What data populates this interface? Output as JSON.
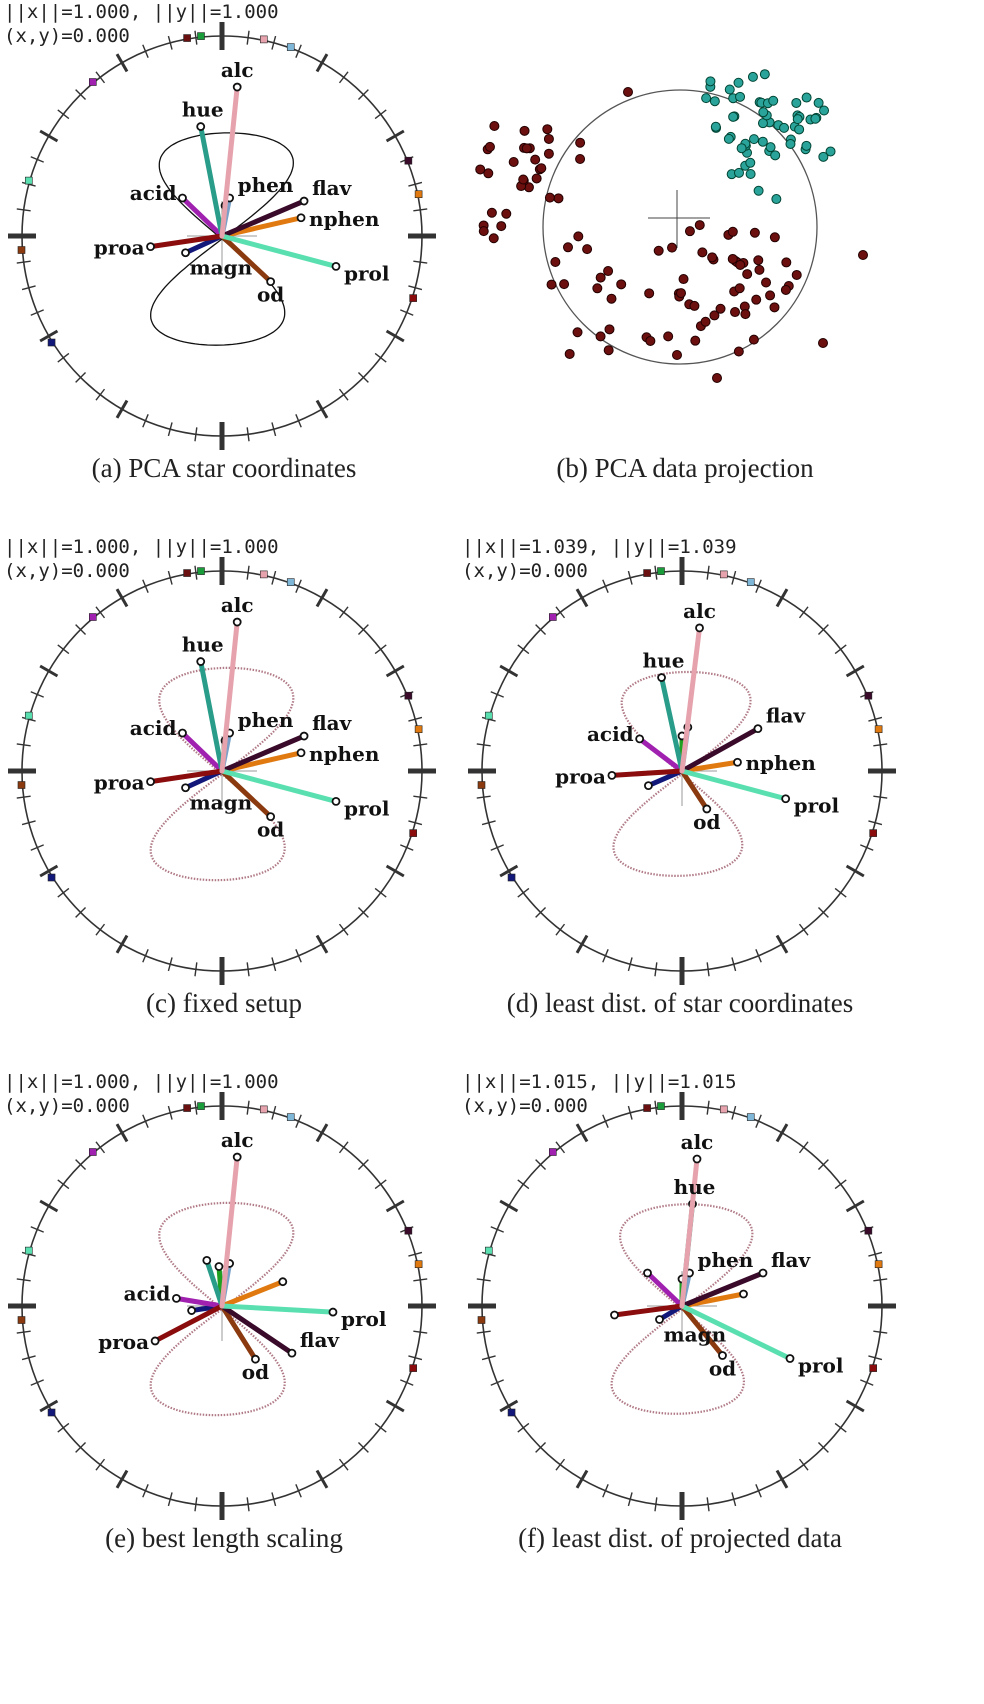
{
  "colors": {
    "alc": "#e6a3ad",
    "hue": "#2a9d8a",
    "acid": "#a020b0",
    "phen": "#7aa0c8",
    "flav": "#3a0a2a",
    "nphen": "#e07a10",
    "proa": "#8b0c0c",
    "magn": "#12177a",
    "od": "#8b3a10",
    "prol": "#5ae0b0",
    "ash": "#20a020",
    "ring": "#333333",
    "dot_class1": "#6b0f0f",
    "dot_class2": "#2aa49a"
  },
  "panels": [
    {
      "id": "a",
      "caption": "(a) PCA star coordinates",
      "type": "star",
      "readout": [
        "||x||=1.000, ||y||=1.000",
        "(x,y)=0.000"
      ],
      "axes": [
        {
          "name": "alc",
          "label": "alc",
          "dx": 0.1,
          "dy": 0.98
        },
        {
          "name": "hue",
          "label": "hue",
          "dx": -0.14,
          "dy": 0.72
        },
        {
          "name": "phen",
          "label": "phen",
          "dx": 0.05,
          "dy": 0.25
        },
        {
          "name": "flav",
          "label": "flav",
          "dx": 0.54,
          "dy": 0.23
        },
        {
          "name": "nphen",
          "label": "nphen",
          "dx": 0.52,
          "dy": 0.12
        },
        {
          "name": "acid",
          "label": "acid",
          "dx": -0.26,
          "dy": 0.25
        },
        {
          "name": "proa",
          "label": "proa",
          "dx": -0.47,
          "dy": -0.07
        },
        {
          "name": "magn",
          "label": "magn",
          "dx": -0.24,
          "dy": -0.11
        },
        {
          "name": "od",
          "label": "od",
          "dx": 0.32,
          "dy": -0.3
        },
        {
          "name": "prol",
          "label": "prol",
          "dx": 0.75,
          "dy": -0.2
        },
        {
          "name": "ash",
          "label": "",
          "dx": 0.02,
          "dy": 0.2
        }
      ]
    },
    {
      "id": "b",
      "caption": "(b) PCA data projection",
      "type": "scatter"
    },
    {
      "id": "c",
      "caption": "(c) fixed setup",
      "type": "star",
      "readout": [
        "||x||=1.000, ||y||=1.000",
        "(x,y)=0.000"
      ],
      "axes": [
        {
          "name": "alc",
          "label": "alc",
          "dx": 0.1,
          "dy": 0.98
        },
        {
          "name": "hue",
          "label": "hue",
          "dx": -0.14,
          "dy": 0.72
        },
        {
          "name": "phen",
          "label": "phen",
          "dx": 0.05,
          "dy": 0.25
        },
        {
          "name": "flav",
          "label": "flav",
          "dx": 0.54,
          "dy": 0.23
        },
        {
          "name": "nphen",
          "label": "nphen",
          "dx": 0.52,
          "dy": 0.12
        },
        {
          "name": "acid",
          "label": "acid",
          "dx": -0.26,
          "dy": 0.25
        },
        {
          "name": "proa",
          "label": "proa",
          "dx": -0.47,
          "dy": -0.07
        },
        {
          "name": "magn",
          "label": "magn",
          "dx": -0.24,
          "dy": -0.11
        },
        {
          "name": "od",
          "label": "od",
          "dx": 0.32,
          "dy": -0.3
        },
        {
          "name": "prol",
          "label": "prol",
          "dx": 0.75,
          "dy": -0.2
        },
        {
          "name": "ash",
          "label": "",
          "dx": 0.02,
          "dy": 0.2
        }
      ]
    },
    {
      "id": "d",
      "caption": "(d) least dist. of star coordinates",
      "type": "star",
      "readout": [
        "||x||=1.039, ||y||=1.039",
        "(x,y)=0.000"
      ],
      "axes": [
        {
          "name": "alc",
          "label": "alc",
          "dx": 0.12,
          "dy": 0.98
        },
        {
          "name": "hue",
          "label": "hue",
          "dx": -0.14,
          "dy": 0.64
        },
        {
          "name": "phen",
          "label": "",
          "dx": 0.04,
          "dy": 0.3
        },
        {
          "name": "flav",
          "label": "flav",
          "dx": 0.52,
          "dy": 0.29
        },
        {
          "name": "nphen",
          "label": "nphen",
          "dx": 0.38,
          "dy": 0.06
        },
        {
          "name": "acid",
          "label": "acid",
          "dx": -0.29,
          "dy": 0.22
        },
        {
          "name": "proa",
          "label": "proa",
          "dx": -0.48,
          "dy": -0.03
        },
        {
          "name": "magn",
          "label": "",
          "dx": -0.23,
          "dy": -0.1
        },
        {
          "name": "od",
          "label": "od",
          "dx": 0.17,
          "dy": -0.26
        },
        {
          "name": "prol",
          "label": "prol",
          "dx": 0.71,
          "dy": -0.19
        },
        {
          "name": "ash",
          "label": "",
          "dx": 0.0,
          "dy": 0.24
        }
      ]
    },
    {
      "id": "e",
      "caption": "(e) best length scaling",
      "type": "star",
      "readout": [
        "||x||=1.000, ||y||=1.000",
        "(x,y)=0.000"
      ],
      "axes": [
        {
          "name": "alc",
          "label": "alc",
          "dx": 0.1,
          "dy": 0.98
        },
        {
          "name": "hue",
          "label": "",
          "dx": -0.1,
          "dy": 0.3
        },
        {
          "name": "phen",
          "label": "",
          "dx": 0.05,
          "dy": 0.28
        },
        {
          "name": "flav",
          "label": "flav",
          "dx": 0.46,
          "dy": -0.31
        },
        {
          "name": "nphen",
          "label": "",
          "dx": 0.4,
          "dy": 0.16
        },
        {
          "name": "acid",
          "label": "acid",
          "dx": -0.3,
          "dy": 0.05
        },
        {
          "name": "proa",
          "label": "proa",
          "dx": -0.44,
          "dy": -0.23
        },
        {
          "name": "magn",
          "label": "",
          "dx": -0.2,
          "dy": -0.03
        },
        {
          "name": "od",
          "label": "od",
          "dx": 0.22,
          "dy": -0.35
        },
        {
          "name": "prol",
          "label": "prol",
          "dx": 0.73,
          "dy": -0.04
        },
        {
          "name": "ash",
          "label": "",
          "dx": -0.02,
          "dy": 0.26
        }
      ]
    },
    {
      "id": "f",
      "caption": "(f) least dist. of projected data",
      "type": "star",
      "readout": [
        "||x||=1.015, ||y||=1.015",
        "(x,y)=0.000"
      ],
      "axes": [
        {
          "name": "alc",
          "label": "alc",
          "dx": 0.1,
          "dy": 0.98
        },
        {
          "name": "hue",
          "label": "hue",
          "dx": 0.07,
          "dy": 0.68
        },
        {
          "name": "phen",
          "label": "phen",
          "dx": 0.05,
          "dy": 0.22
        },
        {
          "name": "flav",
          "label": "flav",
          "dx": 0.54,
          "dy": 0.22
        },
        {
          "name": "nphen",
          "label": "",
          "dx": 0.41,
          "dy": 0.08
        },
        {
          "name": "acid",
          "label": "",
          "dx": -0.23,
          "dy": 0.22
        },
        {
          "name": "proa",
          "label": "",
          "dx": -0.45,
          "dy": -0.06
        },
        {
          "name": "magn",
          "label": "magn",
          "dx": -0.15,
          "dy": -0.09
        },
        {
          "name": "od",
          "label": "od",
          "dx": 0.27,
          "dy": -0.33
        },
        {
          "name": "prol",
          "label": "prol",
          "dx": 0.72,
          "dy": -0.35
        },
        {
          "name": "ash",
          "label": "",
          "dx": 0.0,
          "dy": 0.18
        }
      ]
    }
  ]
}
